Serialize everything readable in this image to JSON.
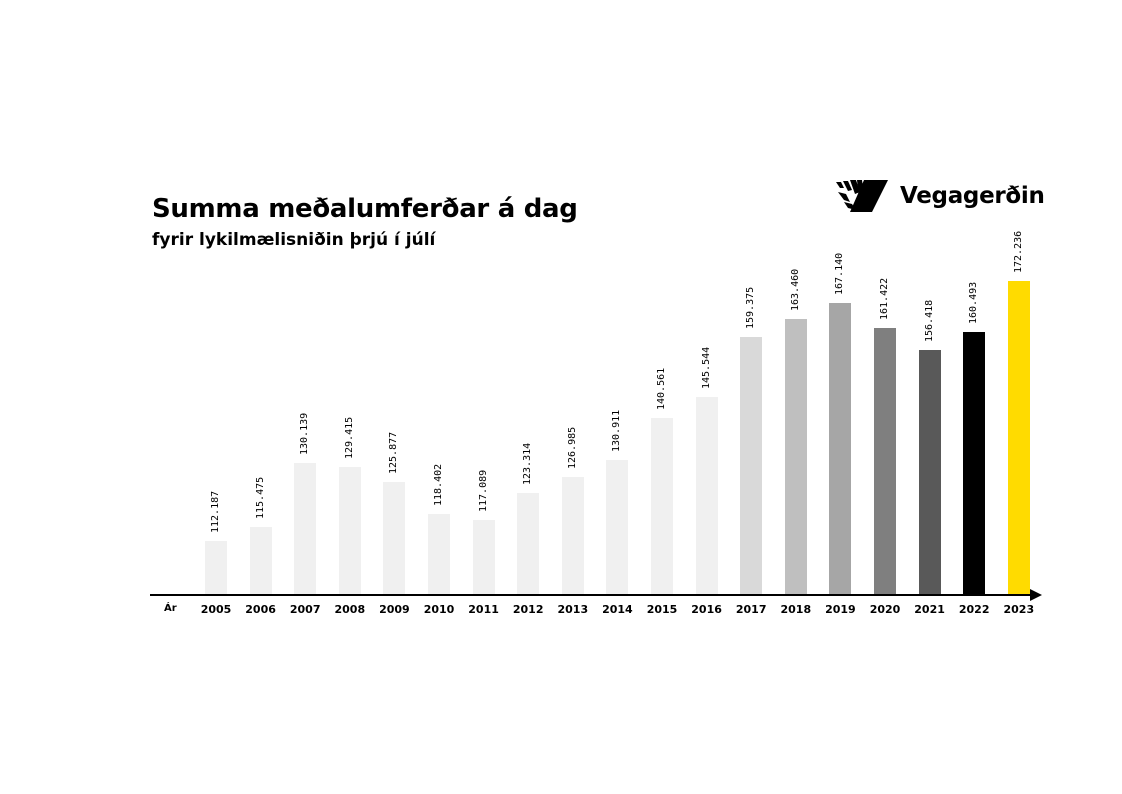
{
  "header": {
    "title": "Summa meðalumferðar á dag",
    "subtitle": "fyrir lykilmælisniðin þrjú í júlí",
    "logo_text": "Vegagerðin",
    "logo_icon": "vegagerdin-logo-icon"
  },
  "axis": {
    "x_label": "Ár"
  },
  "chart_data": {
    "type": "bar",
    "title": "Summa meðalumferðar á dag",
    "subtitle": "fyrir lykilmælisniðin þrjú í júlí",
    "xlabel": "Ár",
    "ylabel": "",
    "ylim": [
      100000,
      175000
    ],
    "grid": false,
    "legend": null,
    "categories": [
      "2005",
      "2006",
      "2007",
      "2008",
      "2009",
      "2010",
      "2011",
      "2012",
      "2013",
      "2014",
      "2015",
      "2016",
      "2017",
      "2018",
      "2019",
      "2020",
      "2021",
      "2022",
      "2023"
    ],
    "values": [
      112187,
      115475,
      130139,
      129415,
      125877,
      118402,
      117089,
      123314,
      126985,
      130911,
      140561,
      145544,
      159375,
      163460,
      167140,
      161422,
      156418,
      160493,
      172236
    ],
    "labels": [
      "112.187",
      "115.475",
      "130.139",
      "129.415",
      "125.877",
      "118.402",
      "117.089",
      "123.314",
      "126.985",
      "130.911",
      "140.561",
      "145.544",
      "159.375",
      "163.460",
      "167.140",
      "161.422",
      "156.418",
      "160.493",
      "172.236"
    ],
    "colors": [
      "#f0f0f0",
      "#f0f0f0",
      "#f0f0f0",
      "#f0f0f0",
      "#f0f0f0",
      "#f0f0f0",
      "#f0f0f0",
      "#f0f0f0",
      "#f0f0f0",
      "#f0f0f0",
      "#f0f0f0",
      "#f0f0f0",
      "#d9d9d9",
      "#bfbfbf",
      "#a6a6a6",
      "#7f7f7f",
      "#595959",
      "#000000",
      "#ffdb00"
    ]
  }
}
